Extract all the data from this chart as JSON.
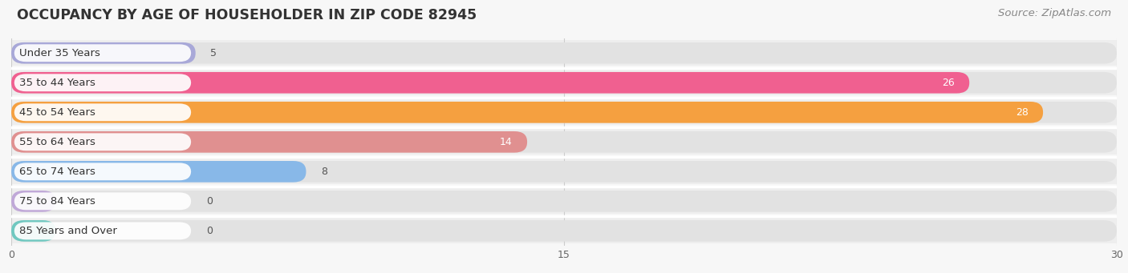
{
  "title": "OCCUPANCY BY AGE OF HOUSEHOLDER IN ZIP CODE 82945",
  "source": "Source: ZipAtlas.com",
  "categories": [
    "Under 35 Years",
    "35 to 44 Years",
    "45 to 54 Years",
    "55 to 64 Years",
    "65 to 74 Years",
    "75 to 84 Years",
    "85 Years and Over"
  ],
  "values": [
    5,
    26,
    28,
    14,
    8,
    0,
    0
  ],
  "bar_colors": [
    "#a8a8d8",
    "#f06090",
    "#f5a040",
    "#e09090",
    "#88b8e8",
    "#c0a8d8",
    "#70c8c0"
  ],
  "value_label_colors": [
    "#666666",
    "#ffffff",
    "#ffffff",
    "#ffffff",
    "#666666",
    "#666666",
    "#666666"
  ],
  "xlim": [
    0,
    30
  ],
  "xticks": [
    0,
    15,
    30
  ],
  "background_color": "#f7f7f7",
  "row_bg_color": "#eeeeee",
  "bar_bg_color": "#e2e2e2",
  "title_fontsize": 12.5,
  "source_fontsize": 9.5,
  "label_fontsize": 9.5,
  "value_fontsize": 9,
  "bar_height": 0.72,
  "fig_width": 14.06,
  "fig_height": 3.41
}
